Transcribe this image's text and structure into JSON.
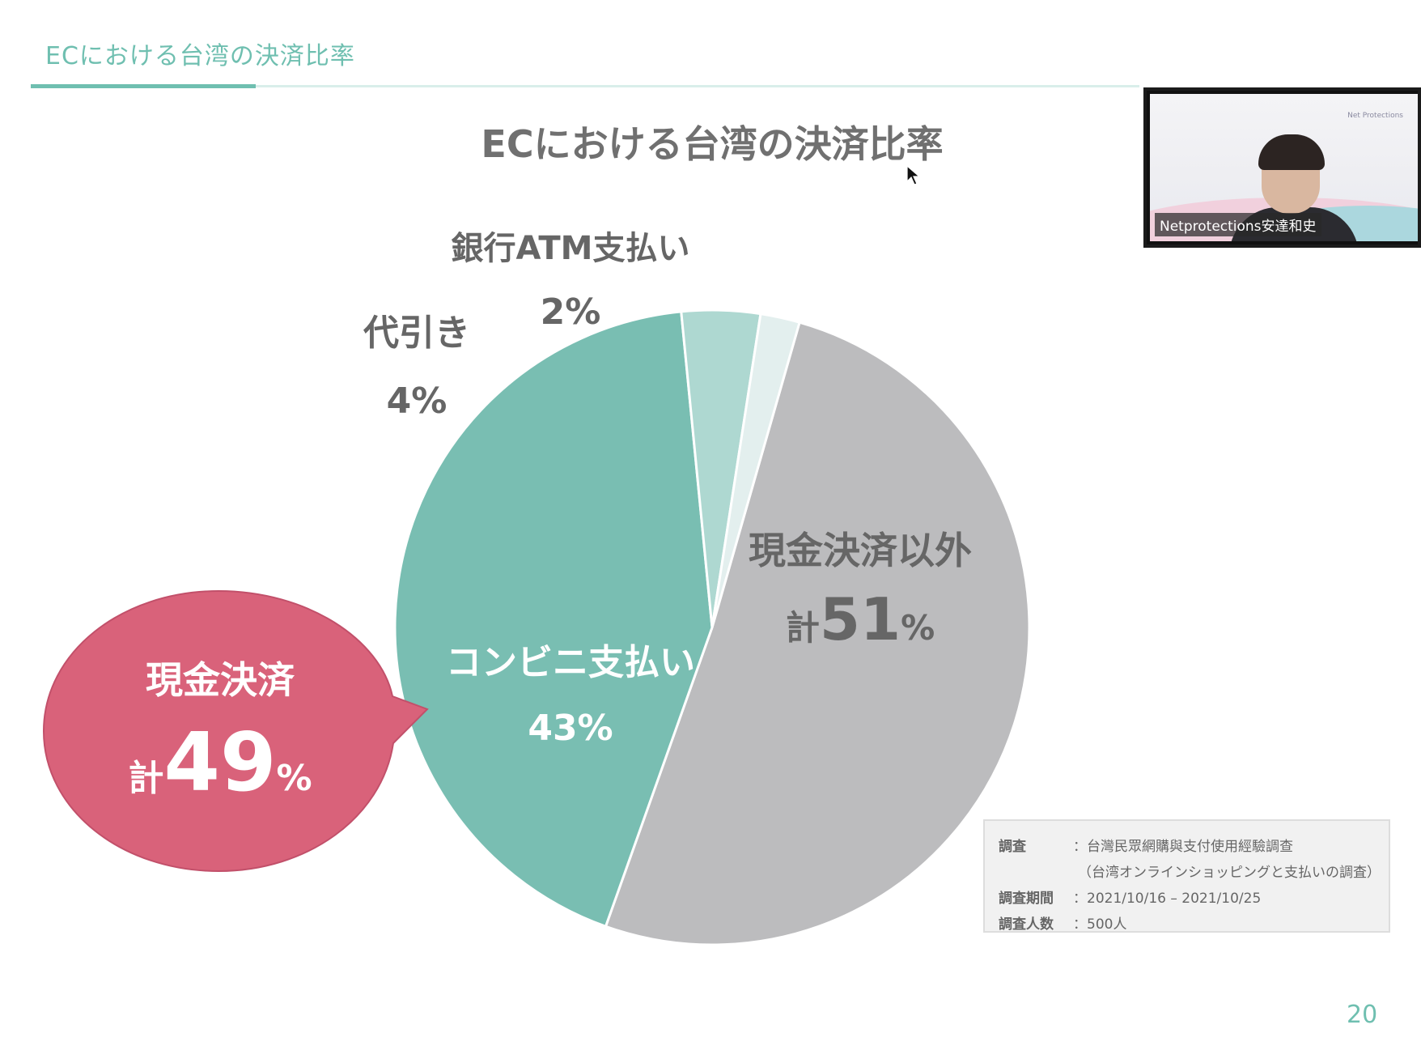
{
  "slide": {
    "header_title": "ECにおける台湾の決済比率",
    "page_number": "20"
  },
  "chart_data": {
    "type": "pie",
    "title": "ECにおける台湾の決済比率",
    "slices": [
      {
        "label": "現金決済以外",
        "value": 51,
        "display": "51",
        "prefix": "計",
        "suffix": "%",
        "color": "#bcbcbe"
      },
      {
        "label": "コンビニ支払い",
        "value": 43,
        "display": "43%",
        "color": "#79beb2"
      },
      {
        "label": "代引き",
        "value": 4,
        "display": "4%",
        "color": "#aed8d1"
      },
      {
        "label": "銀行ATM支払い",
        "value": 2,
        "display": "2%",
        "color": "#e3efee"
      }
    ],
    "callout": {
      "label": "現金決済",
      "prefix": "計",
      "value": "49",
      "suffix": "%",
      "color": "#d9627a"
    }
  },
  "info_box": {
    "rows": [
      {
        "label": "調査",
        "value": "：台灣民眾網購與支付使用經驗調查"
      },
      {
        "label": "",
        "value": "（台湾オンラインショッピングと支払いの調査）"
      },
      {
        "label": "調査期間",
        "value": "：2021/10/16 – 2021/10/25"
      },
      {
        "label": "調査人数",
        "value": "：500人"
      }
    ]
  },
  "video": {
    "participant_name": "Netprotections安達和史",
    "logo_text": "Net Protections"
  },
  "icons": {
    "cursor": "mouse-pointer-icon"
  }
}
